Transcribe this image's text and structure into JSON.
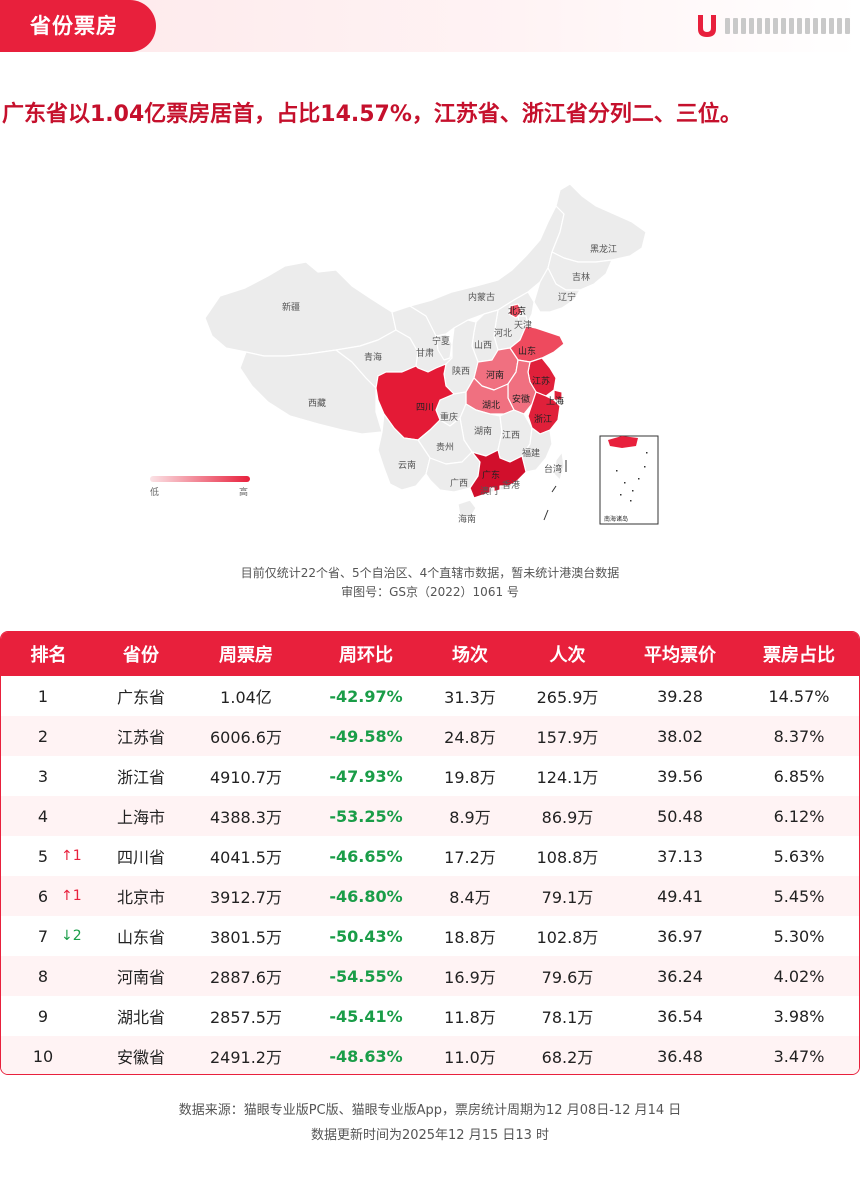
{
  "header": {
    "section_title": "省份票房",
    "brand_logo": "猫眼 logo",
    "brand_color": "#e8203c"
  },
  "headline": "广东省以1.04亿票房居首，占比14.57%，江苏省、浙江省分列二、三位。",
  "map": {
    "province_labels": [
      {
        "id": "xinjiang",
        "name": "新疆"
      },
      {
        "id": "xizang",
        "name": "西藏"
      },
      {
        "id": "qinghai",
        "name": "青海"
      },
      {
        "id": "gansu",
        "name": "甘肃"
      },
      {
        "id": "neimenggu",
        "name": "内蒙古"
      },
      {
        "id": "heilongjiang",
        "name": "黑龙江"
      },
      {
        "id": "jilin",
        "name": "吉林"
      },
      {
        "id": "liaoning",
        "name": "辽宁"
      },
      {
        "id": "beijing",
        "name": "北京"
      },
      {
        "id": "tianjin",
        "name": "天津"
      },
      {
        "id": "hebei",
        "name": "河北"
      },
      {
        "id": "shanxi",
        "name": "山西"
      },
      {
        "id": "ningxia",
        "name": "宁夏"
      },
      {
        "id": "shaanxi",
        "name": "陕西"
      },
      {
        "id": "shandong",
        "name": "山东"
      },
      {
        "id": "henan",
        "name": "河南"
      },
      {
        "id": "jiangsu",
        "name": "江苏"
      },
      {
        "id": "anhui",
        "name": "安徽"
      },
      {
        "id": "shanghai",
        "name": "上海"
      },
      {
        "id": "hubei",
        "name": "湖北"
      },
      {
        "id": "sichuan",
        "name": "四川"
      },
      {
        "id": "chongqing",
        "name": "重庆"
      },
      {
        "id": "zhejiang",
        "name": "浙江"
      },
      {
        "id": "hunan",
        "name": "湖南"
      },
      {
        "id": "jiangxi",
        "name": "江西"
      },
      {
        "id": "guizhou",
        "name": "贵州"
      },
      {
        "id": "yunnan",
        "name": "云南"
      },
      {
        "id": "fujian",
        "name": "福建"
      },
      {
        "id": "guangxi",
        "name": "广西"
      },
      {
        "id": "guangdong",
        "name": "广东"
      },
      {
        "id": "hongkong",
        "name": "香港"
      },
      {
        "id": "macau",
        "name": "澳门"
      },
      {
        "id": "taiwan",
        "name": "台湾"
      },
      {
        "id": "hainan",
        "name": "海南"
      }
    ],
    "legend": {
      "low": "低",
      "high": "高",
      "color_low": "#fbe3e6",
      "color_high": "#e8203c"
    },
    "inset_label": "南海诸岛",
    "note_line1": "目前仅统计22个省、5个自治区、4个直辖市数据，暂未统计港澳台数据",
    "note_line2": "审图号：GS京（2022）1061 号",
    "colors": {
      "base": "#ececec",
      "border": "#ffffff"
    }
  },
  "table": {
    "headers": [
      "排名",
      "省份",
      "周票房",
      "周环比",
      "场次",
      "人次",
      "平均票价",
      "票房占比"
    ],
    "rows": [
      {
        "rank": "1",
        "change": "",
        "dir": "",
        "province": "广东省",
        "box": "1.04亿",
        "wow": "-42.97%",
        "shows": "31.3万",
        "admissions": "265.9万",
        "avg_price": "39.28",
        "share": "14.57%"
      },
      {
        "rank": "2",
        "change": "",
        "dir": "",
        "province": "江苏省",
        "box": "6006.6万",
        "wow": "-49.58%",
        "shows": "24.8万",
        "admissions": "157.9万",
        "avg_price": "38.02",
        "share": "8.37%"
      },
      {
        "rank": "3",
        "change": "",
        "dir": "",
        "province": "浙江省",
        "box": "4910.7万",
        "wow": "-47.93%",
        "shows": "19.8万",
        "admissions": "124.1万",
        "avg_price": "39.56",
        "share": "6.85%"
      },
      {
        "rank": "4",
        "change": "",
        "dir": "",
        "province": "上海市",
        "box": "4388.3万",
        "wow": "-53.25%",
        "shows": "8.9万",
        "admissions": "86.9万",
        "avg_price": "50.48",
        "share": "6.12%"
      },
      {
        "rank": "5",
        "change": "↑1",
        "dir": "up",
        "province": "四川省",
        "box": "4041.5万",
        "wow": "-46.65%",
        "shows": "17.2万",
        "admissions": "108.8万",
        "avg_price": "37.13",
        "share": "5.63%"
      },
      {
        "rank": "6",
        "change": "↑1",
        "dir": "up",
        "province": "北京市",
        "box": "3912.7万",
        "wow": "-46.80%",
        "shows": "8.4万",
        "admissions": "79.1万",
        "avg_price": "49.41",
        "share": "5.45%"
      },
      {
        "rank": "7",
        "change": "↓2",
        "dir": "down",
        "province": "山东省",
        "box": "3801.5万",
        "wow": "-50.43%",
        "shows": "18.8万",
        "admissions": "102.8万",
        "avg_price": "36.97",
        "share": "5.30%"
      },
      {
        "rank": "8",
        "change": "",
        "dir": "",
        "province": "河南省",
        "box": "2887.6万",
        "wow": "-54.55%",
        "shows": "16.9万",
        "admissions": "79.6万",
        "avg_price": "36.24",
        "share": "4.02%"
      },
      {
        "rank": "9",
        "change": "",
        "dir": "",
        "province": "湖北省",
        "box": "2857.5万",
        "wow": "-45.41%",
        "shows": "11.8万",
        "admissions": "78.1万",
        "avg_price": "36.54",
        "share": "3.98%"
      },
      {
        "rank": "10",
        "change": "",
        "dir": "",
        "province": "安徽省",
        "box": "2491.2万",
        "wow": "-48.63%",
        "shows": "11.0万",
        "admissions": "68.2万",
        "avg_price": "36.48",
        "share": "3.47%"
      }
    ]
  },
  "footer": {
    "line1": "数据来源：猫眼专业版PC版、猫眼专业版App，票房统计周期为12 月08日-12 月14 日",
    "line2": "数据更新时间为2025年12 月15 日13 时"
  }
}
